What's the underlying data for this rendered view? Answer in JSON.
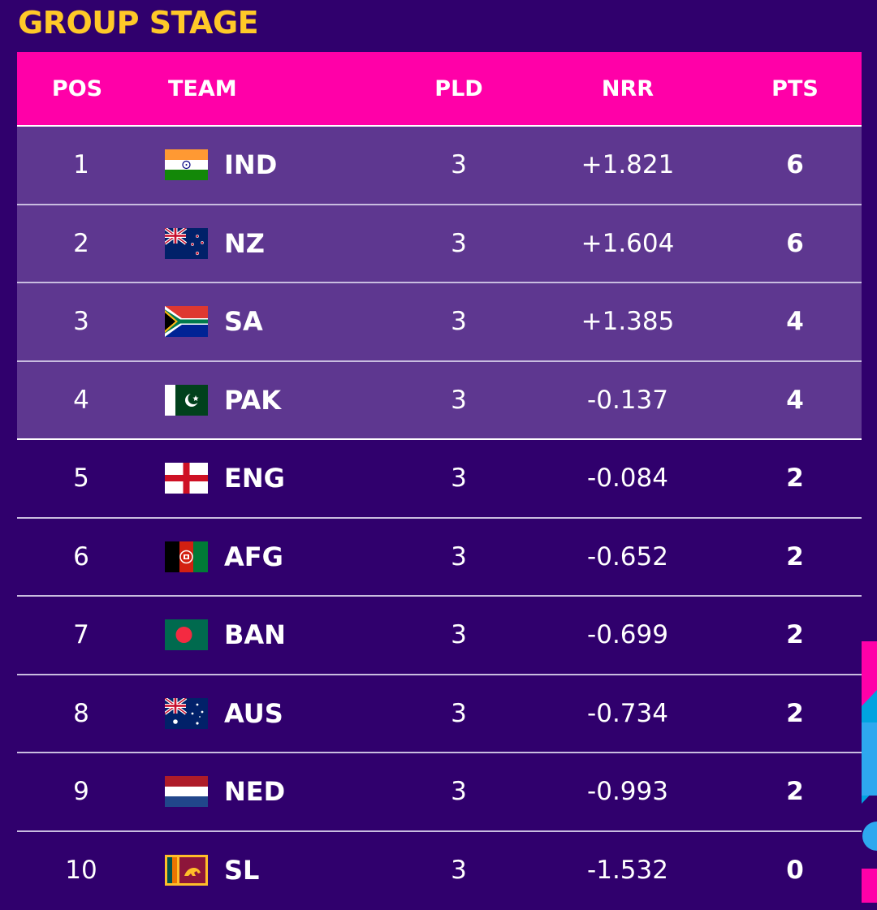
{
  "title": "GROUP STAGE",
  "headers": {
    "pos": "POS",
    "team": "TEAM",
    "pld": "PLD",
    "nrr": "NRR",
    "pts": "PTS"
  },
  "colors": {
    "background": "#30006d",
    "header": "#ff00a8",
    "title": "#ffc928",
    "qualified_row": "#5e3790"
  },
  "rows": [
    {
      "pos": "1",
      "team": "IND",
      "flag": "india-flag-icon",
      "pld": "3",
      "nrr": "+1.821",
      "pts": "6"
    },
    {
      "pos": "2",
      "team": "NZ",
      "flag": "new-zealand-flag-icon",
      "pld": "3",
      "nrr": "+1.604",
      "pts": "6"
    },
    {
      "pos": "3",
      "team": "SA",
      "flag": "south-africa-flag-icon",
      "pld": "3",
      "nrr": "+1.385",
      "pts": "4"
    },
    {
      "pos": "4",
      "team": "PAK",
      "flag": "pakistan-flag-icon",
      "pld": "3",
      "nrr": "-0.137",
      "pts": "4"
    },
    {
      "pos": "5",
      "team": "ENG",
      "flag": "england-flag-icon",
      "pld": "3",
      "nrr": "-0.084",
      "pts": "2"
    },
    {
      "pos": "6",
      "team": "AFG",
      "flag": "afghanistan-flag-icon",
      "pld": "3",
      "nrr": "-0.652",
      "pts": "2"
    },
    {
      "pos": "7",
      "team": "BAN",
      "flag": "bangladesh-flag-icon",
      "pld": "3",
      "nrr": "-0.699",
      "pts": "2"
    },
    {
      "pos": "8",
      "team": "AUS",
      "flag": "australia-flag-icon",
      "pld": "3",
      "nrr": "-0.734",
      "pts": "2"
    },
    {
      "pos": "9",
      "team": "NED",
      "flag": "netherlands-flag-icon",
      "pld": "3",
      "nrr": "-0.993",
      "pts": "2"
    },
    {
      "pos": "10",
      "team": "SL",
      "flag": "sri-lanka-flag-icon",
      "pld": "3",
      "nrr": "-1.532",
      "pts": "0"
    }
  ]
}
